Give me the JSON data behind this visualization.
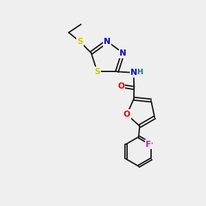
{
  "background_color": "#efefef",
  "bond_color": "#1a1a1a",
  "atom_colors": {
    "N": "#0000ff",
    "S": "#cccc00",
    "O": "#ff0000",
    "F": "#ff00cc",
    "C": "#1a1a1a",
    "H": "#008080"
  },
  "figsize": [
    3.0,
    3.0
  ],
  "dpi": 100
}
